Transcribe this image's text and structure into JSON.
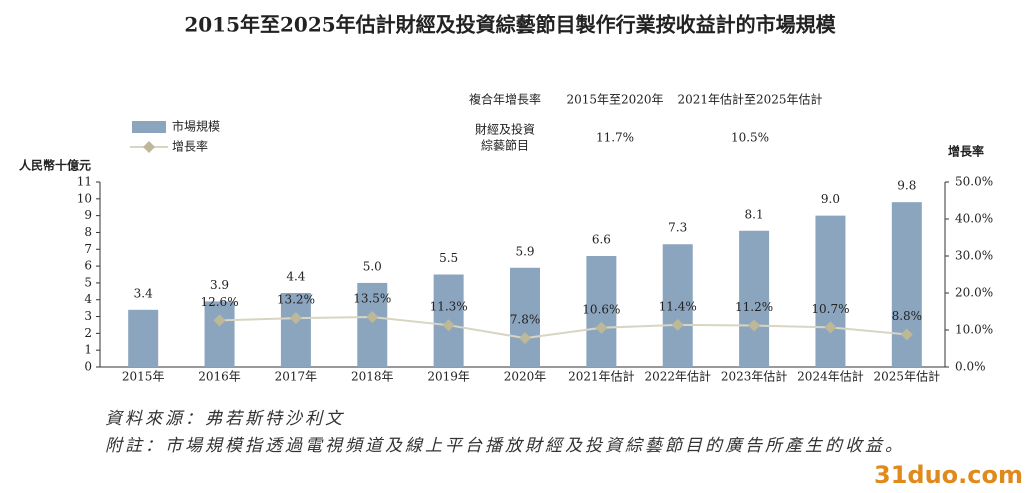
{
  "chart_data": {
    "type": "bar",
    "title": "2015年至2025年估計財經及投資綜藝節目製作行業按收益計的市場規模",
    "categories": [
      "2015年",
      "2016年",
      "2017年",
      "2018年",
      "2019年",
      "2020年",
      "2021年估計",
      "2022年估計",
      "2023年估計",
      "2024年估計",
      "2025年估計"
    ],
    "series": [
      {
        "name": "市場規模",
        "color": "#8ca5bf",
        "values": [
          3.4,
          3.9,
          4.4,
          5.0,
          5.5,
          5.9,
          6.6,
          7.3,
          8.1,
          9.0,
          9.8
        ],
        "value_labels": [
          "3.4",
          "3.9",
          "4.4",
          "5.0",
          "5.5",
          "5.9",
          "6.6",
          "7.3",
          "8.1",
          "9.0",
          "9.8"
        ]
      },
      {
        "name": "增長率",
        "axis": "y2",
        "color": "#d8d5c2",
        "marker_color": "#bdb898",
        "values": [
          null,
          12.6,
          13.2,
          13.5,
          11.3,
          7.8,
          10.6,
          11.4,
          11.2,
          10.7,
          8.8
        ],
        "value_labels": [
          null,
          "12.6%",
          "13.2%",
          "13.5%",
          "11.3%",
          "7.8%",
          "10.6%",
          "11.4%",
          "11.2%",
          "10.7%",
          "8.8%"
        ]
      }
    ],
    "ylabel": "人民幣十億元",
    "y2label": "增長率",
    "ylim": [
      0,
      11
    ],
    "yticks": [
      0,
      1,
      2,
      3,
      4,
      5,
      6,
      7,
      8,
      9,
      10,
      11
    ],
    "y2lim": [
      0,
      50
    ],
    "y2ticks": [
      {
        "value": 0,
        "label": "0.0%"
      },
      {
        "value": 10,
        "label": "10.0%"
      },
      {
        "value": 20,
        "label": "20.0%"
      },
      {
        "value": 30,
        "label": "30.0%"
      },
      {
        "value": 40,
        "label": "40.0%"
      },
      {
        "value": 50,
        "label": "50.0%"
      }
    ],
    "cagr_table": {
      "header": [
        "複合年增長率",
        "2015年至2020年",
        "2021年估計至2025年估計"
      ],
      "row": {
        "label": [
          "財經及投資",
          "綜藝節目"
        ],
        "values": [
          "11.7%",
          "10.5%"
        ]
      }
    },
    "source": "資料來源：弗若斯特沙利文",
    "note": "附註：市場規模指透過電視頻道及線上平台播放財經及投資綜藝節目的廣告所產生的收益。",
    "watermark": "31duo.com"
  }
}
